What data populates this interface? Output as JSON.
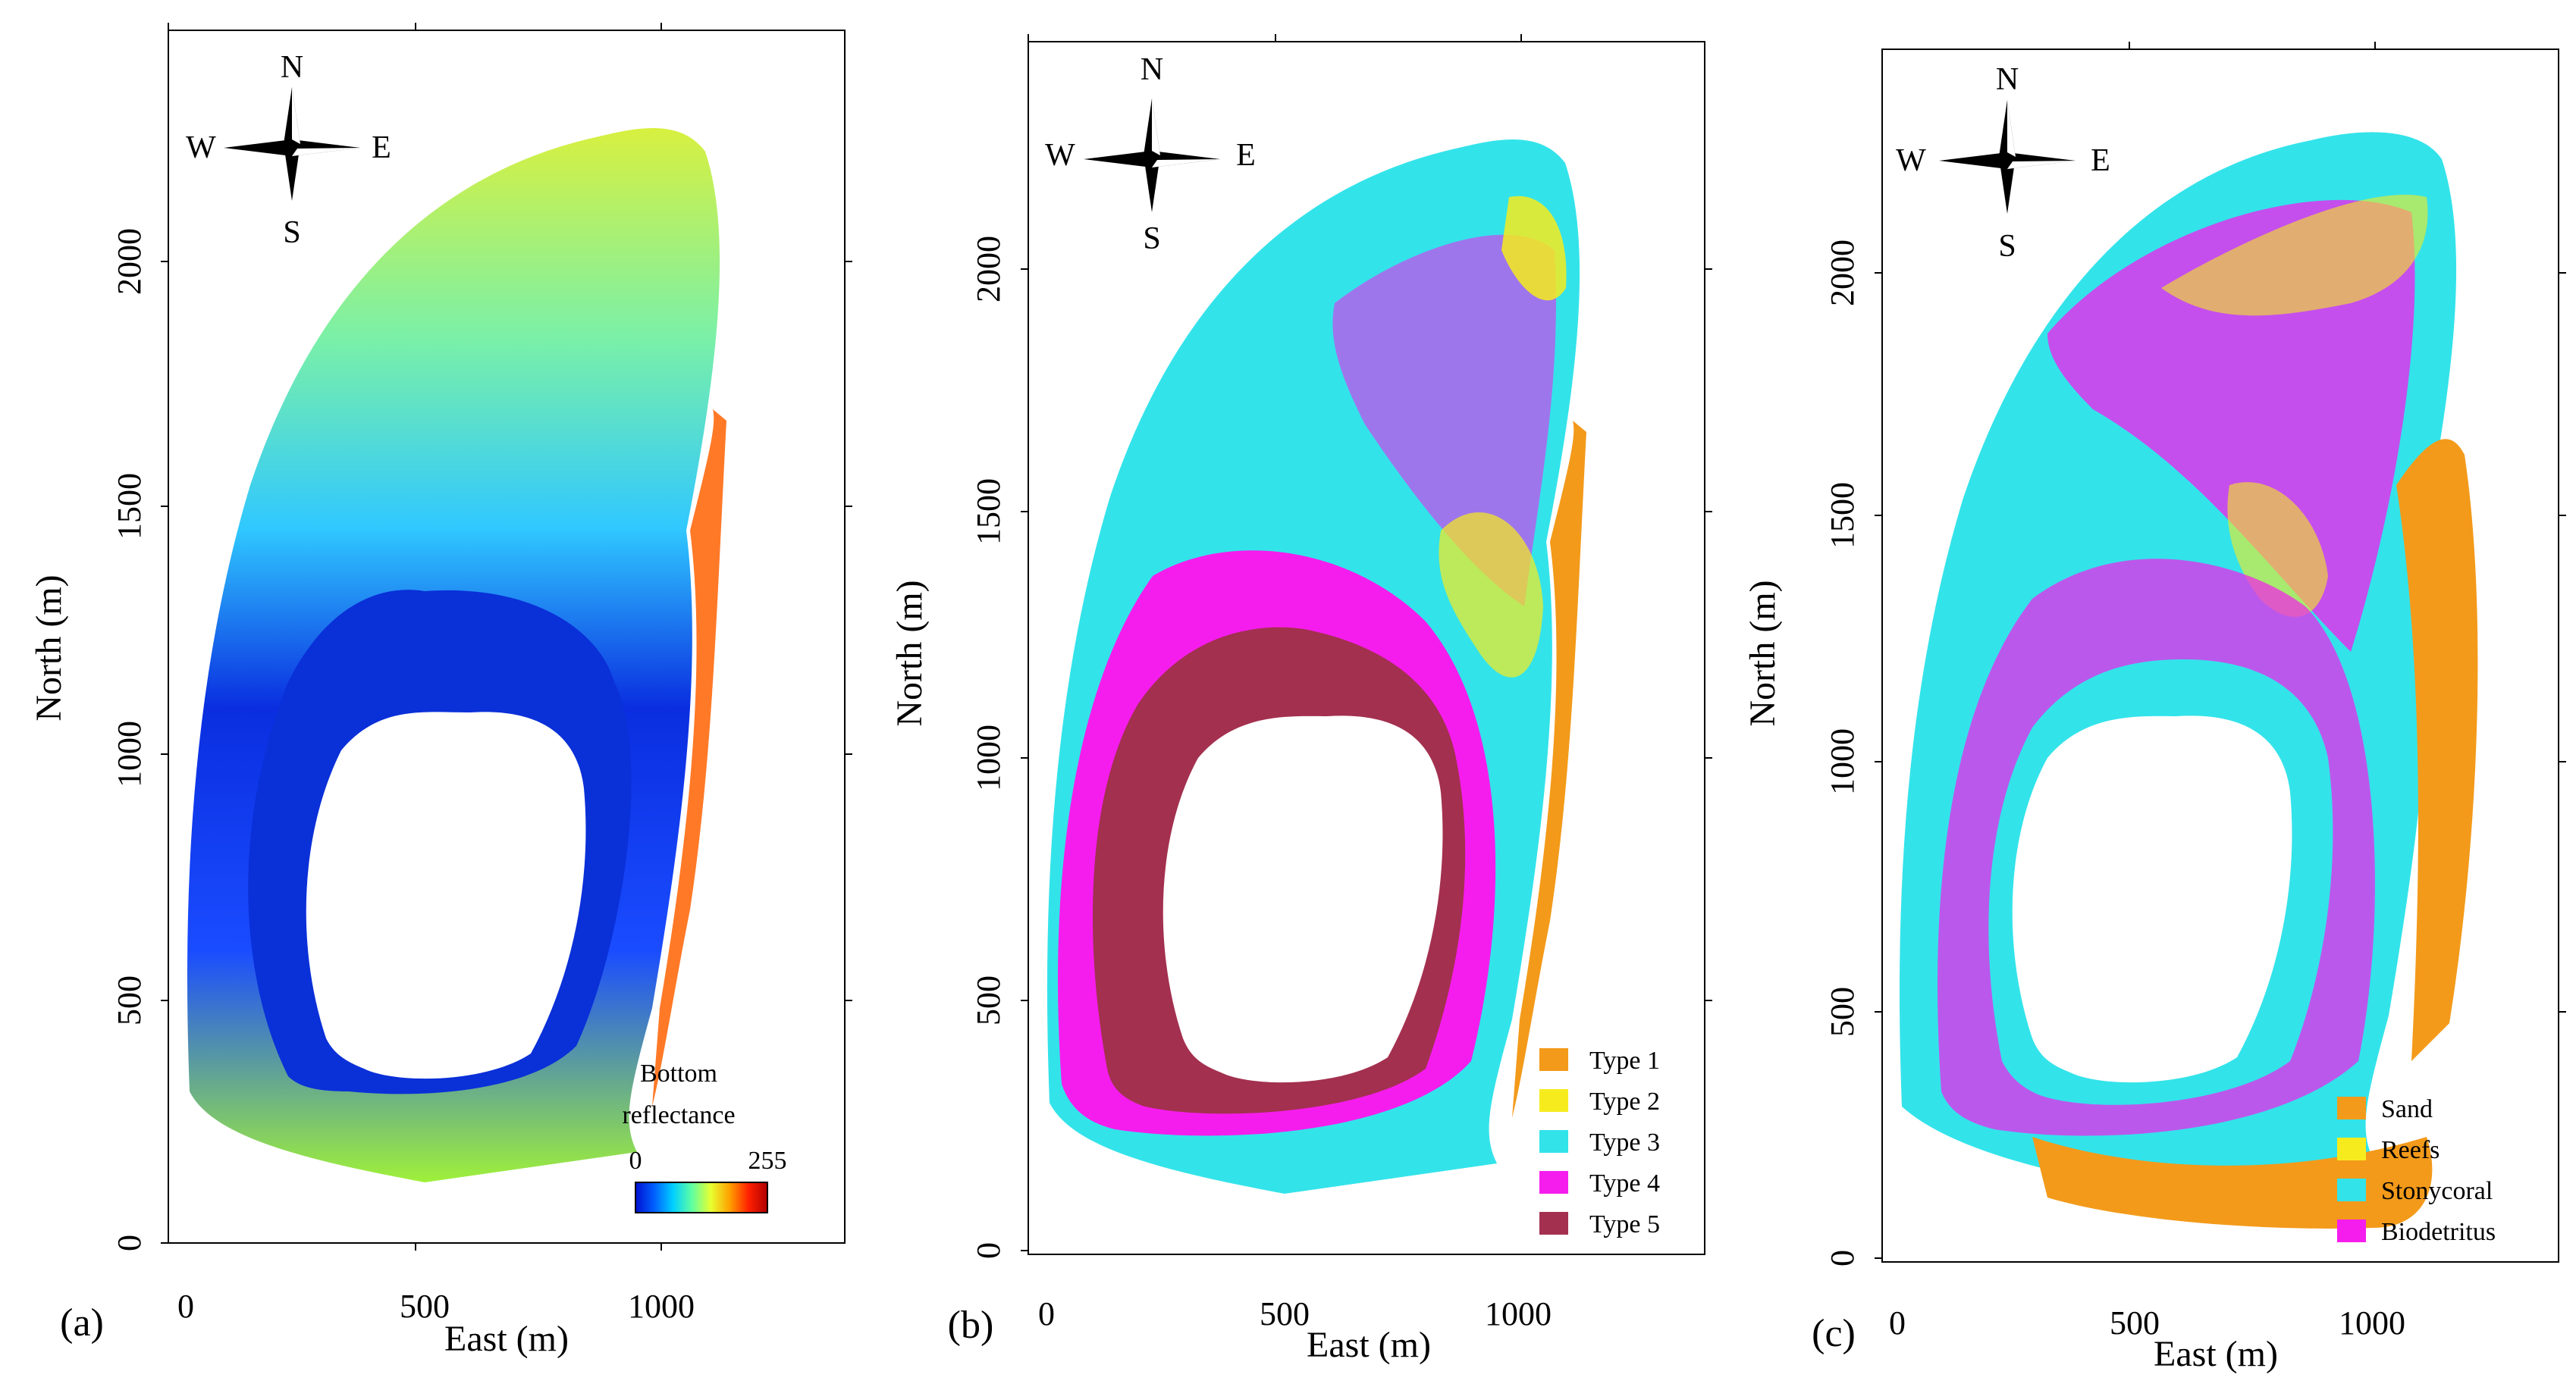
{
  "colors": {
    "type1": "#f39a1a",
    "type2": "#f6ec1d",
    "type3": "#33e3ea",
    "type4": "#f51ded",
    "type5": "#a3304f",
    "colorbar": [
      "#0010d0",
      "#0060ff",
      "#00d0ff",
      "#60ffa0",
      "#e8ff30",
      "#ffa000",
      "#ff2000",
      "#b00000"
    ]
  },
  "axes": {
    "x_label": "East (m)",
    "y_label": "North (m)",
    "x_ticks": [
      "0",
      "500",
      "1000"
    ],
    "y_ticks": [
      "0",
      "500",
      "1000",
      "1500",
      "2000"
    ]
  },
  "compass": {
    "n": "N",
    "s": "S",
    "e": "E",
    "w": "W"
  },
  "panels": [
    {
      "label": "(a)",
      "legend_title_line1": "Bottom",
      "legend_title_line2": "reflectance",
      "colorbar_min": "0",
      "colorbar_max": "255"
    },
    {
      "label": "(b)",
      "legend": [
        "Type 1",
        "Type 2",
        "Type 3",
        "Type 4",
        "Type 5"
      ]
    },
    {
      "label": "(c)",
      "legend": [
        "Sand",
        "Reefs",
        "Stonycoral",
        "Biodetritus"
      ]
    }
  ]
}
